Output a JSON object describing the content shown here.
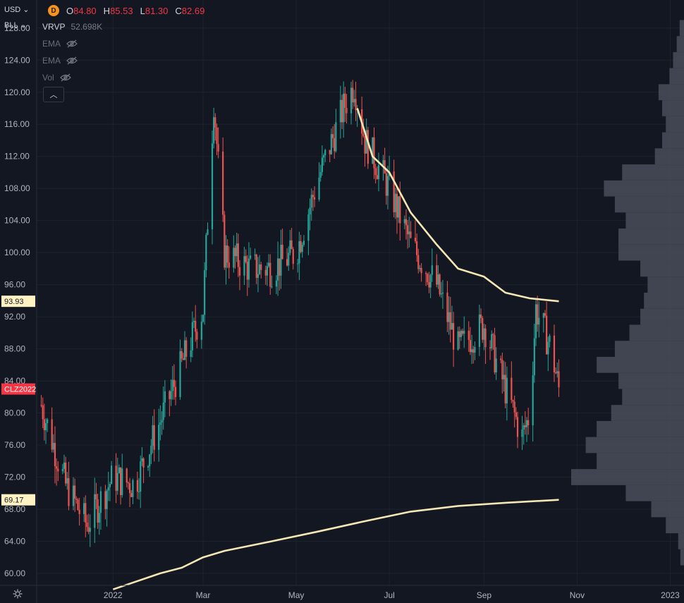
{
  "header": {
    "currency": "USD",
    "unit": "BLL",
    "currency_chevron_icon": "chevron-down-icon",
    "symbol_badge": "D",
    "ohlc": {
      "o_label": "O",
      "o_value": "84.80",
      "h_label": "H",
      "h_value": "85.53",
      "l_label": "L",
      "l_value": "81.30",
      "c_label": "C",
      "c_value": "82.69"
    }
  },
  "indicators": {
    "vrvp": {
      "name": "VRVP",
      "value": "52.698K"
    },
    "ema1": {
      "name": "EMA",
      "icon": "eye-off-icon"
    },
    "ema2": {
      "name": "EMA",
      "icon": "eye-off-icon"
    },
    "vol": {
      "name": "Vol",
      "icon": "eye-off-icon"
    },
    "collapse_icon": "chevron-up-icon"
  },
  "badges": {
    "ema_short_value": "93.93",
    "ema_long_value": "69.17",
    "symbol_label": "CLZ2022"
  },
  "colors": {
    "background": "#131722",
    "up_candle": "#26a69a",
    "down_candle": "#ef5350",
    "ema_line": "#f5e7b3",
    "volume_profile": "#4a4e59",
    "text": "#b2b5be",
    "symbol_badge_bg": "#f7931a"
  },
  "chart_data": {
    "type": "candlestick",
    "y_ticks": [
      "60.00",
      "64.00",
      "68.00",
      "72.00",
      "76.00",
      "80.00",
      "84.00",
      "88.00",
      "92.00",
      "96.00",
      "100.00",
      "104.00",
      "108.00",
      "112.00",
      "116.00",
      "120.00",
      "124.00",
      "128.00"
    ],
    "ylim": [
      58.5,
      131.5
    ],
    "x_ticks": [
      "2022",
      "Mar",
      "May",
      "Jul",
      "Sep",
      "Nov",
      "2023"
    ],
    "grid": true,
    "x": [
      "2021-11-15",
      "2021-12-01",
      "2021-12-15",
      "2022-01-01",
      "2022-01-15",
      "2022-02-01",
      "2022-02-15",
      "2022-03-01",
      "2022-03-08",
      "2022-03-15",
      "2022-04-01",
      "2022-04-15",
      "2022-05-01",
      "2022-05-15",
      "2022-06-01",
      "2022-06-08",
      "2022-06-15",
      "2022-07-01",
      "2022-07-15",
      "2022-08-01",
      "2022-08-15",
      "2022-09-01",
      "2022-09-15",
      "2022-09-26",
      "2022-10-01",
      "2022-10-05",
      "2022-10-15",
      "2022-10-20"
    ],
    "close": [
      81,
      71,
      66,
      72,
      71,
      79,
      86,
      93,
      119,
      100,
      98,
      98,
      100,
      109,
      118,
      121,
      114,
      108,
      101,
      96,
      88,
      91,
      83,
      77,
      80,
      93,
      88,
      83
    ],
    "last": {
      "open": 84.8,
      "high": 85.53,
      "low": 81.3,
      "close": 82.69
    },
    "ema_short": {
      "x": [
        "2022-06-10",
        "2022-06-20",
        "2022-07-01",
        "2022-07-15",
        "2022-08-01",
        "2022-08-15",
        "2022-09-01",
        "2022-09-15",
        "2022-10-01",
        "2022-10-20"
      ],
      "values": [
        118,
        112,
        110,
        105,
        101,
        98,
        97,
        95,
        94.3,
        93.93
      ]
    },
    "ema_long": {
      "x": [
        "2022-01-01",
        "2022-02-01",
        "2022-02-15",
        "2022-03-01",
        "2022-03-15",
        "2022-04-15",
        "2022-05-15",
        "2022-06-15",
        "2022-07-15",
        "2022-08-15",
        "2022-09-15",
        "2022-10-20"
      ],
      "values": [
        58,
        60,
        60.7,
        62,
        62.8,
        64,
        65.2,
        66.5,
        67.7,
        68.4,
        68.8,
        69.17
      ]
    },
    "volume_profile": {
      "prices": [
        62,
        64,
        66,
        68,
        70,
        72,
        74,
        76,
        78,
        80,
        82,
        84,
        86,
        88,
        90,
        92,
        94,
        96,
        98,
        100,
        102,
        104,
        106,
        108,
        110,
        112,
        114,
        116,
        118,
        120,
        122,
        124,
        126,
        128
      ],
      "volumes": [
        5,
        8,
        25,
        45,
        80,
        155,
        120,
        135,
        120,
        100,
        85,
        90,
        120,
        95,
        75,
        60,
        55,
        50,
        60,
        90,
        90,
        80,
        95,
        110,
        85,
        40,
        30,
        25,
        30,
        35,
        20,
        15,
        10,
        6
      ]
    }
  }
}
